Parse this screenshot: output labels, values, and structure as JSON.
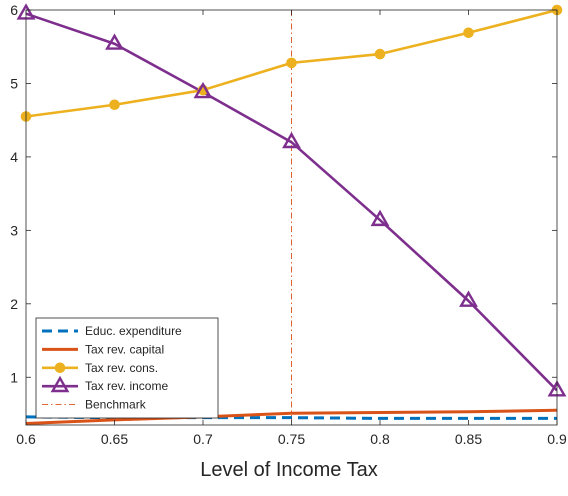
{
  "chart_data": {
    "type": "line",
    "xlabel": "Level of Income Tax",
    "ylabel": "",
    "title": "",
    "xlim": [
      0.6,
      0.9
    ],
    "ylim": [
      0.35,
      6.0
    ],
    "xticks": [
      0.6,
      0.65,
      0.7,
      0.75,
      0.8,
      0.85,
      0.9
    ],
    "xtick_labels": [
      "0.6",
      "0.65",
      "0.7",
      "0.75",
      "0.8",
      "0.85",
      "0.9"
    ],
    "yticks": [
      1,
      2,
      3,
      4,
      5,
      6
    ],
    "ytick_labels": [
      "1",
      "2",
      "3",
      "4",
      "5",
      "6"
    ],
    "grid": false,
    "legend_position": "bottom-left",
    "x": [
      0.6,
      0.65,
      0.7,
      0.75,
      0.8,
      0.85,
      0.9
    ],
    "series": [
      {
        "name": "Educ. expenditure",
        "values": [
          0.46,
          0.45,
          0.45,
          0.45,
          0.44,
          0.44,
          0.44
        ],
        "color": "#0072BD",
        "style": "dashed",
        "marker": "none"
      },
      {
        "name": "Tax rev. capital",
        "values": [
          0.37,
          0.42,
          0.46,
          0.51,
          0.52,
          0.53,
          0.55
        ],
        "color": "#D95319",
        "style": "solid",
        "marker": "none"
      },
      {
        "name": "Tax rev. cons.",
        "values": [
          4.55,
          4.71,
          4.91,
          5.28,
          5.4,
          5.69,
          6.0
        ],
        "color": "#EDB120",
        "style": "solid",
        "marker": "circle"
      },
      {
        "name": "Tax rev. income",
        "values": [
          5.95,
          5.54,
          4.88,
          4.2,
          3.14,
          2.04,
          0.82
        ],
        "color": "#7E2F8E",
        "style": "solid",
        "marker": "triangle"
      }
    ],
    "reference_line": {
      "name": "Benchmark",
      "x": 0.75,
      "color": "#D95319",
      "style": "dash-dot"
    }
  }
}
